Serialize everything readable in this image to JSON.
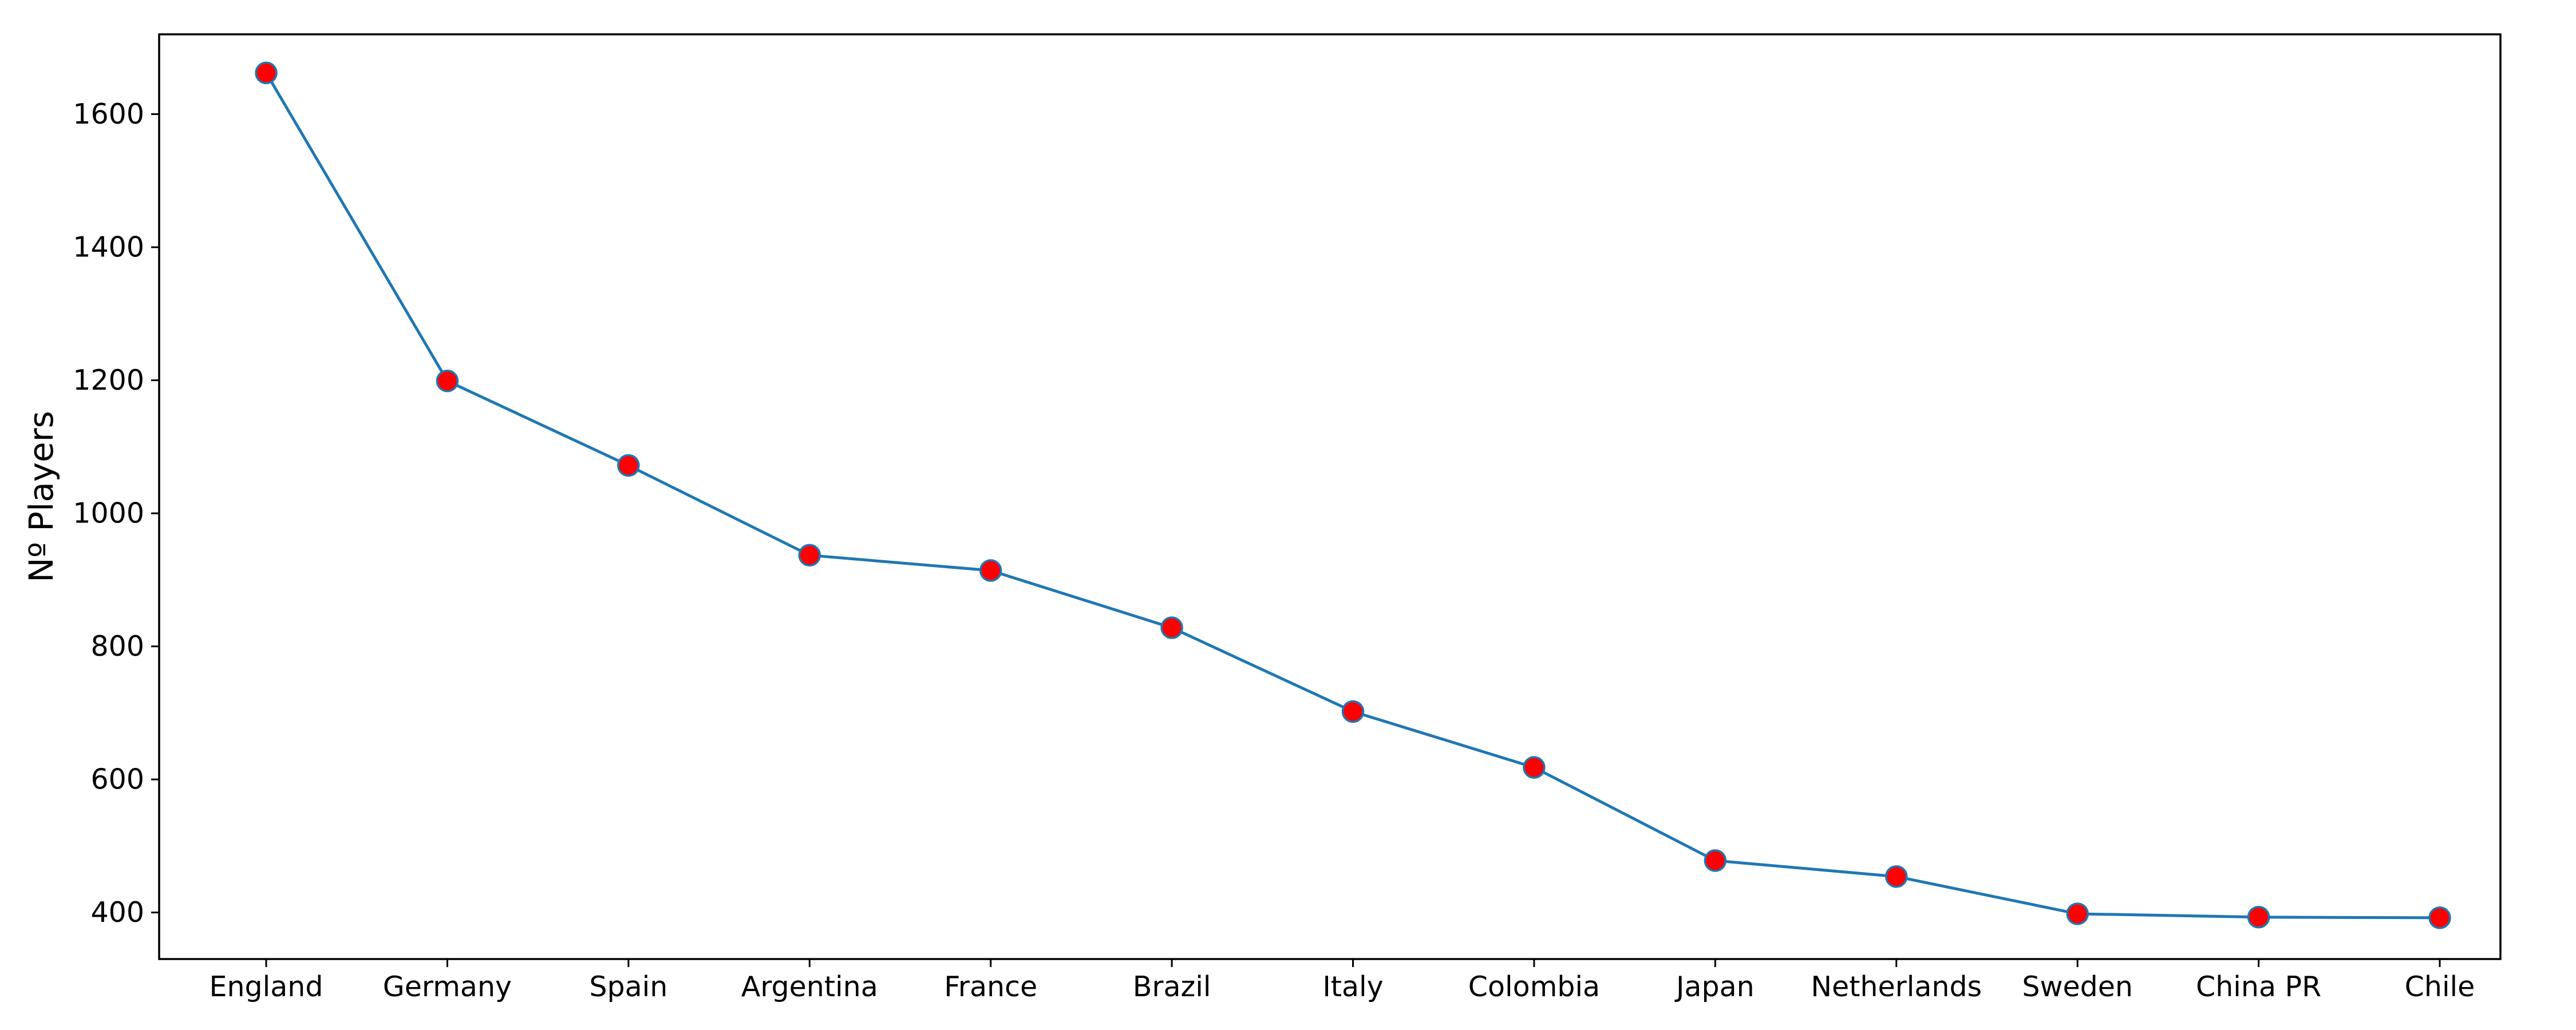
{
  "chart_data": {
    "type": "line",
    "title": "",
    "xlabel": "",
    "ylabel": "Nº Players",
    "categories": [
      "England",
      "Germany",
      "Spain",
      "Argentina",
      "France",
      "Brazil",
      "Italy",
      "Colombia",
      "Japan",
      "Netherlands",
      "Sweden",
      "China PR",
      "Chile"
    ],
    "series": [
      {
        "values": [
          1662,
          1199,
          1072,
          937,
          914,
          828,
          702,
          618,
          478,
          454,
          398,
          393,
          392
        ]
      }
    ],
    "ylim": [
      330,
      1720
    ],
    "yticks": [
      400,
      600,
      800,
      1000,
      1200,
      1400,
      1600
    ],
    "grid": false,
    "colors": {
      "line": "#1f77b4",
      "marker_fill": "#ff0000",
      "marker_edge": "#1f77b4",
      "axis": "#000000"
    }
  }
}
